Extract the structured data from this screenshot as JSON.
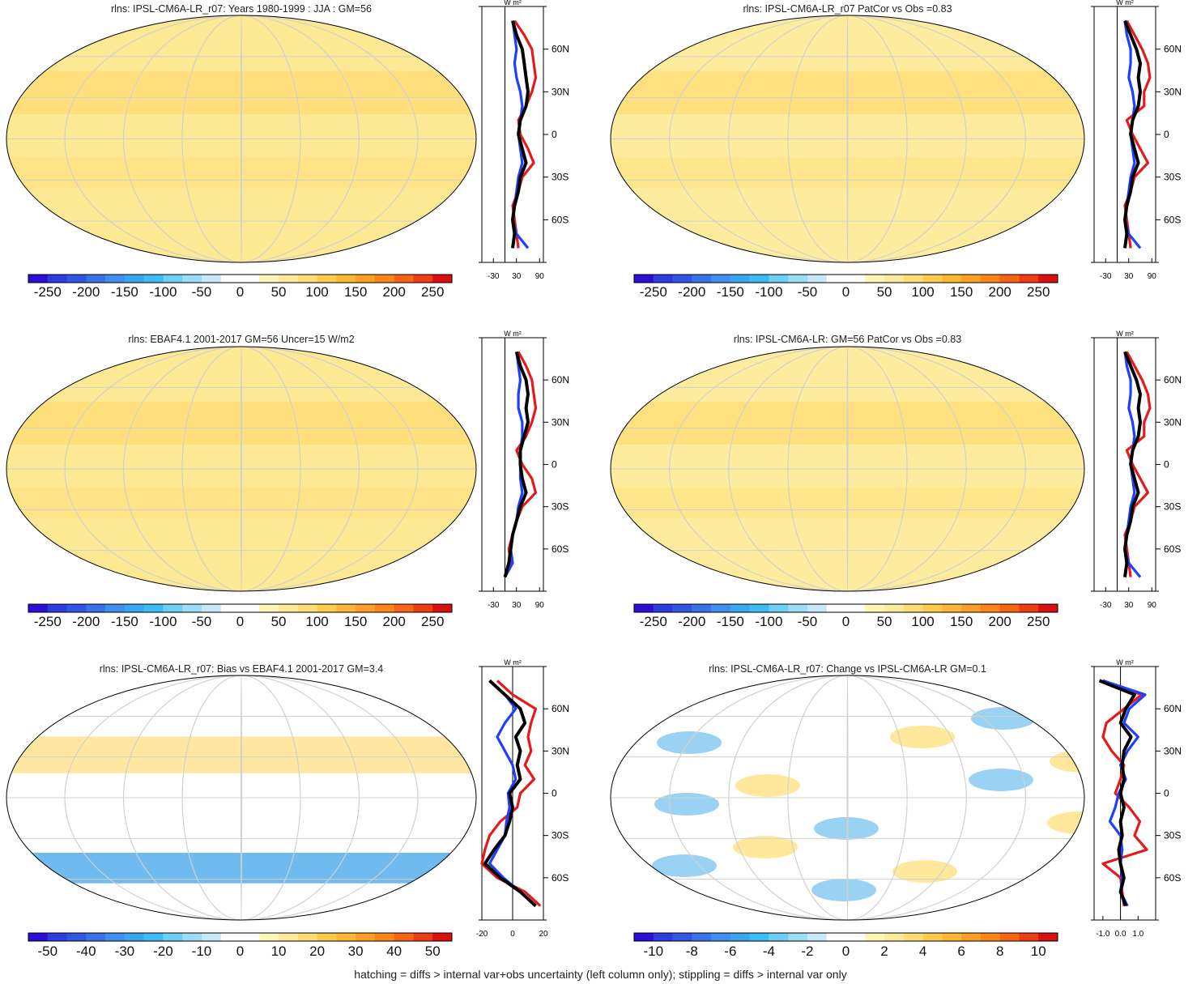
{
  "footnote": "hatching = diffs > internal var+obs uncertainty (left column only); stippling = diffs > internal var only",
  "chart_data": [
    {
      "type": "heatmap",
      "title": "rlns: IPSL-CM6A-LR_r07: Years 1980-1999 : JJA : GM=56",
      "colorbar": {
        "ticks": [
          "-250",
          "-200",
          "-150",
          "-100",
          "-50",
          "0",
          "50",
          "100",
          "150",
          "200",
          "250"
        ],
        "range": [
          -275,
          275
        ],
        "levels": 22
      },
      "zonal_profile": {
        "unit": "W m²",
        "x_ticks": [
          "-30",
          "30",
          "90"
        ],
        "xlim": [
          -60,
          100
        ],
        "y_ticks": [
          "60N",
          "30N",
          "0",
          "30S",
          "60S"
        ],
        "series": [
          {
            "color": "#000000",
            "lat": [
              80,
              70,
              60,
              50,
              40,
              30,
              20,
              10,
              0,
              -10,
              -20,
              -30,
              -40,
              -50,
              -60,
              -70,
              -80
            ],
            "values": [
              20,
              30,
              45,
              50,
              55,
              60,
              55,
              40,
              35,
              45,
              55,
              40,
              35,
              25,
              20,
              25,
              20
            ]
          },
          {
            "color": "#e41a1c",
            "lat": [
              80,
              70,
              60,
              50,
              40,
              30,
              20,
              10,
              0,
              -10,
              -20,
              -30,
              -40,
              -50,
              -60,
              -70,
              -80
            ],
            "values": [
              25,
              50,
              70,
              75,
              80,
              70,
              55,
              35,
              40,
              60,
              75,
              45,
              35,
              20,
              25,
              30,
              35
            ]
          },
          {
            "color": "#1f3fff",
            "lat": [
              80,
              70,
              60,
              50,
              40,
              30,
              20,
              10,
              0,
              -10,
              -20,
              -30,
              -40,
              -50,
              -60,
              -70,
              -80
            ],
            "values": [
              20,
              25,
              30,
              25,
              30,
              40,
              45,
              40,
              35,
              40,
              45,
              35,
              30,
              25,
              20,
              30,
              60
            ]
          }
        ]
      }
    },
    {
      "type": "heatmap",
      "title": "rlns: IPSL-CM6A-LR_r07 PatCor vs Obs =0.83",
      "colorbar": {
        "ticks": [
          "-250",
          "-200",
          "-150",
          "-100",
          "-50",
          "0",
          "50",
          "100",
          "150",
          "200",
          "250"
        ],
        "range": [
          -275,
          275
        ],
        "levels": 22
      },
      "zonal_profile": {
        "unit": "W m²",
        "x_ticks": [
          "-30",
          "30",
          "90"
        ],
        "xlim": [
          -60,
          100
        ],
        "y_ticks": [
          "60N",
          "30N",
          "0",
          "30S",
          "60S"
        ],
        "series": [
          {
            "color": "#000000",
            "lat": [
              80,
              70,
              60,
              50,
              40,
              30,
              20,
              10,
              0,
              -10,
              -20,
              -30,
              -40,
              -50,
              -60,
              -70,
              -80
            ],
            "values": [
              20,
              35,
              50,
              60,
              55,
              60,
              55,
              40,
              35,
              45,
              55,
              40,
              35,
              25,
              20,
              25,
              20
            ]
          },
          {
            "color": "#e41a1c",
            "lat": [
              80,
              70,
              60,
              50,
              40,
              30,
              20,
              10,
              0,
              -10,
              -20,
              -30,
              -40,
              -50,
              -60,
              -70,
              -80
            ],
            "values": [
              25,
              45,
              65,
              80,
              85,
              70,
              70,
              25,
              40,
              60,
              80,
              45,
              35,
              20,
              25,
              30,
              35
            ]
          },
          {
            "color": "#1f3fff",
            "lat": [
              80,
              70,
              60,
              50,
              40,
              30,
              20,
              10,
              0,
              -10,
              -20,
              -30,
              -40,
              -50,
              -60,
              -70,
              -80
            ],
            "values": [
              20,
              25,
              35,
              35,
              30,
              40,
              45,
              40,
              35,
              40,
              45,
              35,
              30,
              25,
              20,
              30,
              60
            ]
          }
        ]
      }
    },
    {
      "type": "heatmap",
      "title": "rlns: EBAF4.1 2001-2017 GM=56 Uncer=15 W/m2",
      "colorbar": {
        "ticks": [
          "-250",
          "-200",
          "-150",
          "-100",
          "-50",
          "0",
          "50",
          "100",
          "150",
          "200",
          "250"
        ],
        "range": [
          -275,
          275
        ],
        "levels": 22
      },
      "zonal_profile": {
        "unit": "W m²",
        "x_ticks": [
          "-30",
          "30",
          "90"
        ],
        "xlim": [
          -60,
          100
        ],
        "y_ticks": [
          "60N",
          "30N",
          "0",
          "30S",
          "60S"
        ],
        "series": [
          {
            "color": "#000000",
            "lat": [
              80,
              70,
              60,
              50,
              40,
              30,
              20,
              10,
              0,
              -10,
              -20,
              -30,
              -40,
              -50,
              -60,
              -70,
              -80
            ],
            "values": [
              30,
              40,
              55,
              60,
              55,
              60,
              50,
              40,
              40,
              45,
              55,
              40,
              30,
              20,
              15,
              10,
              0
            ]
          },
          {
            "color": "#e41a1c",
            "lat": [
              80,
              70,
              60,
              50,
              40,
              30,
              20,
              10,
              0,
              -10,
              -20,
              -30,
              -40,
              -50,
              -60,
              -70,
              -80
            ],
            "values": [
              35,
              55,
              70,
              75,
              80,
              70,
              55,
              30,
              45,
              70,
              80,
              45,
              30,
              20,
              10,
              15,
              0
            ]
          },
          {
            "color": "#1f3fff",
            "lat": [
              80,
              70,
              60,
              50,
              40,
              30,
              20,
              10,
              0,
              -10,
              -20,
              -30,
              -40,
              -50,
              -60,
              -70,
              -80
            ],
            "values": [
              30,
              35,
              40,
              35,
              35,
              45,
              45,
              40,
              40,
              40,
              45,
              35,
              30,
              20,
              15,
              20,
              0
            ]
          }
        ]
      }
    },
    {
      "type": "heatmap",
      "title": "rlns: IPSL-CM6A-LR: GM=56 PatCor vs Obs =0.83",
      "colorbar": {
        "ticks": [
          "-250",
          "-200",
          "-150",
          "-100",
          "-50",
          "0",
          "50",
          "100",
          "150",
          "200",
          "250"
        ],
        "range": [
          -275,
          275
        ],
        "levels": 22
      },
      "zonal_profile": {
        "unit": "W m²",
        "x_ticks": [
          "-30",
          "30",
          "90"
        ],
        "xlim": [
          -60,
          100
        ],
        "y_ticks": [
          "60N",
          "30N",
          "0",
          "30S",
          "60S"
        ],
        "series": [
          {
            "color": "#000000",
            "lat": [
              80,
              70,
              60,
              50,
              40,
              30,
              20,
              10,
              0,
              -10,
              -20,
              -30,
              -40,
              -50,
              -60,
              -70,
              -80
            ],
            "values": [
              20,
              35,
              50,
              60,
              55,
              60,
              55,
              40,
              35,
              45,
              55,
              40,
              35,
              25,
              20,
              25,
              20
            ]
          },
          {
            "color": "#e41a1c",
            "lat": [
              80,
              70,
              60,
              50,
              40,
              30,
              20,
              10,
              0,
              -10,
              -20,
              -30,
              -40,
              -50,
              -60,
              -70,
              -80
            ],
            "values": [
              25,
              45,
              65,
              80,
              85,
              70,
              70,
              25,
              40,
              60,
              80,
              45,
              35,
              20,
              25,
              30,
              35
            ]
          },
          {
            "color": "#1f3fff",
            "lat": [
              80,
              70,
              60,
              50,
              40,
              30,
              20,
              10,
              0,
              -10,
              -20,
              -30,
              -40,
              -50,
              -60,
              -70,
              -80
            ],
            "values": [
              20,
              25,
              35,
              35,
              30,
              40,
              45,
              40,
              35,
              40,
              45,
              35,
              30,
              25,
              20,
              30,
              60
            ]
          }
        ]
      }
    },
    {
      "type": "heatmap",
      "title": "rlns: IPSL-CM6A-LR_r07: Bias vs EBAF4.1 2001-2017 GM=3.4",
      "colorbar": {
        "ticks": [
          "-50",
          "-40",
          "-30",
          "-20",
          "-10",
          "0",
          "10",
          "20",
          "30",
          "40",
          "50"
        ],
        "range": [
          -55,
          55
        ],
        "levels": 22
      },
      "zonal_profile": {
        "unit": "W m²",
        "x_ticks": [
          "-20",
          "0",
          "20"
        ],
        "xlim": [
          -20,
          20
        ],
        "y_ticks": [
          "60N",
          "30N",
          "0",
          "30S",
          "60S"
        ],
        "series": [
          {
            "color": "#000000",
            "lat": [
              80,
              70,
              60,
              50,
              40,
              30,
              20,
              10,
              0,
              -10,
              -20,
              -30,
              -40,
              -50,
              -60,
              -70,
              -80
            ],
            "values": [
              -15,
              -5,
              5,
              8,
              2,
              5,
              3,
              5,
              -2,
              0,
              -2,
              -5,
              -12,
              -18,
              -8,
              5,
              15
            ]
          },
          {
            "color": "#e41a1c",
            "lat": [
              80,
              70,
              60,
              50,
              40,
              30,
              20,
              10,
              0,
              -10,
              -20,
              -30,
              -40,
              -50,
              -60,
              -70,
              -80
            ],
            "values": [
              -10,
              0,
              15,
              12,
              10,
              12,
              8,
              14,
              5,
              3,
              -8,
              -15,
              -18,
              -20,
              -10,
              8,
              18
            ]
          },
          {
            "color": "#1f3fff",
            "lat": [
              80,
              70,
              60,
              50,
              40,
              30,
              20,
              10,
              0,
              -10,
              -20,
              -30,
              -40,
              -50,
              -60,
              -70,
              -80
            ],
            "values": [
              -15,
              -5,
              2,
              -5,
              -10,
              -5,
              0,
              2,
              -3,
              -2,
              -4,
              -5,
              -10,
              -15,
              -6,
              5,
              15
            ]
          }
        ]
      }
    },
    {
      "type": "heatmap",
      "title": "rlns: IPSL-CM6A-LR_r07: Change vs IPSL-CM6A-LR GM=0.1",
      "colorbar": {
        "ticks": [
          "-10",
          "-8",
          "-6",
          "-4",
          "-2",
          "0",
          "2",
          "4",
          "6",
          "8",
          "10"
        ],
        "range": [
          -11,
          11
        ],
        "levels": 22
      },
      "zonal_profile": {
        "unit": "W m²",
        "x_ticks": [
          "-1.0",
          "0.0",
          "1.0"
        ],
        "xlim": [
          -1.5,
          2.0
        ],
        "y_ticks": [
          "60N",
          "30N",
          "0",
          "30S",
          "60S"
        ],
        "series": [
          {
            "color": "#000000",
            "lat": [
              80,
              70,
              60,
              50,
              40,
              30,
              20,
              10,
              0,
              -10,
              -20,
              -30,
              -40,
              -50,
              -60,
              -70,
              -80
            ],
            "values": [
              -1.2,
              0.8,
              0.3,
              0.0,
              0.6,
              0.2,
              0.1,
              0.2,
              0.0,
              0.2,
              0.0,
              0.1,
              -0.1,
              0.0,
              0.2,
              0.0,
              0.3
            ]
          },
          {
            "color": "#e41a1c",
            "lat": [
              80,
              70,
              60,
              50,
              40,
              30,
              20,
              10,
              0,
              -10,
              -20,
              -30,
              -40,
              -50,
              -60,
              -70,
              -80
            ],
            "values": [
              -1.0,
              1.2,
              0.2,
              -0.8,
              -1.0,
              -0.5,
              0.2,
              0.0,
              -0.3,
              0.5,
              1.1,
              0.8,
              1.5,
              -1.0,
              0.0,
              0.1,
              0.2
            ]
          },
          {
            "color": "#1f3fff",
            "lat": [
              80,
              70,
              60,
              50,
              40,
              30,
              20,
              10,
              0,
              -10,
              -20,
              -30,
              -40,
              -50,
              -60,
              -70,
              -80
            ],
            "values": [
              -1.0,
              1.4,
              0.5,
              0.2,
              1.0,
              0.4,
              0.0,
              0.3,
              -0.1,
              -0.3,
              -0.6,
              0.0,
              0.1,
              0.0,
              0.1,
              0.0,
              0.4
            ]
          }
        ]
      }
    }
  ]
}
